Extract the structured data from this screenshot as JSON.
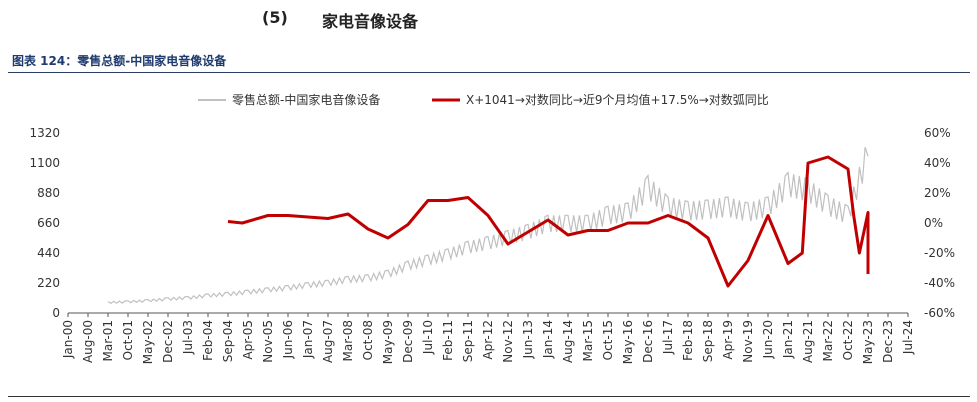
{
  "header": {
    "section_number": "(5)",
    "section_title": "家电音像设备",
    "figure_caption": "图表 124：零售总额-中国家电音像设备"
  },
  "colors": {
    "series1": "#c0c0c0",
    "series2": "#c00000",
    "caption": "#1f3b6e"
  },
  "chart_data": {
    "type": "line",
    "title": "",
    "legend_position": "top",
    "grid": false,
    "left_axis": {
      "ylim": [
        0,
        1320
      ],
      "ticks": [
        "0",
        "220",
        "440",
        "660",
        "880",
        "1100",
        "1320"
      ]
    },
    "right_axis": {
      "ylim": [
        -60,
        60
      ],
      "ticks": [
        "-60%",
        "-40%",
        "-20%",
        "0%",
        "20%",
        "40%",
        "60%"
      ]
    },
    "x_ticks": [
      "Jan-00",
      "Aug-00",
      "Mar-01",
      "Oct-01",
      "May-02",
      "Dec-02",
      "Jul-03",
      "Feb-04",
      "Sep-04",
      "Apr-05",
      "Nov-05",
      "Jun-06",
      "Jan-07",
      "Aug-07",
      "Mar-08",
      "Oct-08",
      "May-09",
      "Dec-09",
      "Jul-10",
      "Feb-11",
      "Sep-11",
      "Apr-12",
      "Nov-12",
      "Jun-13",
      "Jan-14",
      "Aug-14",
      "Mar-15",
      "Oct-15",
      "May-16",
      "Dec-16",
      "Jul-17",
      "Feb-18",
      "Sep-18",
      "Apr-19",
      "Nov-19",
      "Jun-20",
      "Jan-21",
      "Aug-21",
      "Mar-22",
      "Oct-22",
      "May-23",
      "Dec-23",
      "Jul-24"
    ],
    "series": [
      {
        "name": "零售总额-中国家电音像设备",
        "axis": "left",
        "points": [
          [
            "Mar-01",
            75
          ],
          [
            "Oct-01",
            80
          ],
          [
            "May-02",
            88
          ],
          [
            "Dec-02",
            100
          ],
          [
            "Jul-03",
            108
          ],
          [
            "Feb-04",
            125
          ],
          [
            "Sep-04",
            135
          ],
          [
            "Apr-05",
            150
          ],
          [
            "Nov-05",
            165
          ],
          [
            "Jun-06",
            180
          ],
          [
            "Jan-07",
            200
          ],
          [
            "Aug-07",
            215
          ],
          [
            "Mar-08",
            240
          ],
          [
            "Oct-08",
            250
          ],
          [
            "May-09",
            280
          ],
          [
            "Dec-09",
            340
          ],
          [
            "Jul-10",
            380
          ],
          [
            "Feb-11",
            420
          ],
          [
            "Sep-11",
            470
          ],
          [
            "Apr-12",
            500
          ],
          [
            "Nov-12",
            540
          ],
          [
            "Jun-13",
            580
          ],
          [
            "Jan-14",
            640
          ],
          [
            "Aug-14",
            640
          ],
          [
            "Mar-15",
            640
          ],
          [
            "Oct-15",
            700
          ],
          [
            "May-16",
            720
          ],
          [
            "Dec-16",
            900
          ],
          [
            "Jul-17",
            760
          ],
          [
            "Feb-18",
            730
          ],
          [
            "Sep-18",
            740
          ],
          [
            "Apr-19",
            760
          ],
          [
            "Nov-19",
            720
          ],
          [
            "Jun-20",
            760
          ],
          [
            "Jan-21",
            920
          ],
          [
            "Aug-21",
            880
          ],
          [
            "Mar-22",
            770
          ],
          [
            "Oct-22",
            700
          ],
          [
            "May-23",
            1150
          ]
        ]
      },
      {
        "name": "X+1041→对数同比→近9个月均值+17.5%→对数弧同比",
        "axis": "right",
        "points": [
          [
            "Sep-04",
            1
          ],
          [
            "Feb-05",
            0
          ],
          [
            "Nov-05",
            5
          ],
          [
            "Jun-06",
            5
          ],
          [
            "Jan-07",
            4
          ],
          [
            "Aug-07",
            3
          ],
          [
            "Mar-08",
            6
          ],
          [
            "Oct-08",
            -4
          ],
          [
            "May-09",
            -10
          ],
          [
            "Dec-09",
            -1
          ],
          [
            "Jul-10",
            15
          ],
          [
            "Feb-11",
            15
          ],
          [
            "Sep-11",
            17
          ],
          [
            "Apr-12",
            5
          ],
          [
            "Nov-12",
            -14
          ],
          [
            "Jun-13",
            -6
          ],
          [
            "Jan-14",
            2
          ],
          [
            "Aug-14",
            -8
          ],
          [
            "Mar-15",
            -5
          ],
          [
            "Oct-15",
            -5
          ],
          [
            "May-16",
            0
          ],
          [
            "Dec-16",
            0
          ],
          [
            "Jul-17",
            5
          ],
          [
            "Feb-18",
            0
          ],
          [
            "Sep-18",
            -10
          ],
          [
            "Apr-19",
            -42
          ],
          [
            "Nov-19",
            -25
          ],
          [
            "Jun-20",
            5
          ],
          [
            "Jan-21",
            -27
          ],
          [
            "Jun-21",
            -20
          ],
          [
            "Aug-21",
            40
          ],
          [
            "Mar-22",
            44
          ],
          [
            "Oct-22",
            36
          ],
          [
            "May-23",
            7
          ],
          [
            "Dec-22",
            5
          ],
          [
            "Feb-23",
            -20
          ],
          [
            "May-23b",
            -34
          ]
        ]
      }
    ]
  }
}
